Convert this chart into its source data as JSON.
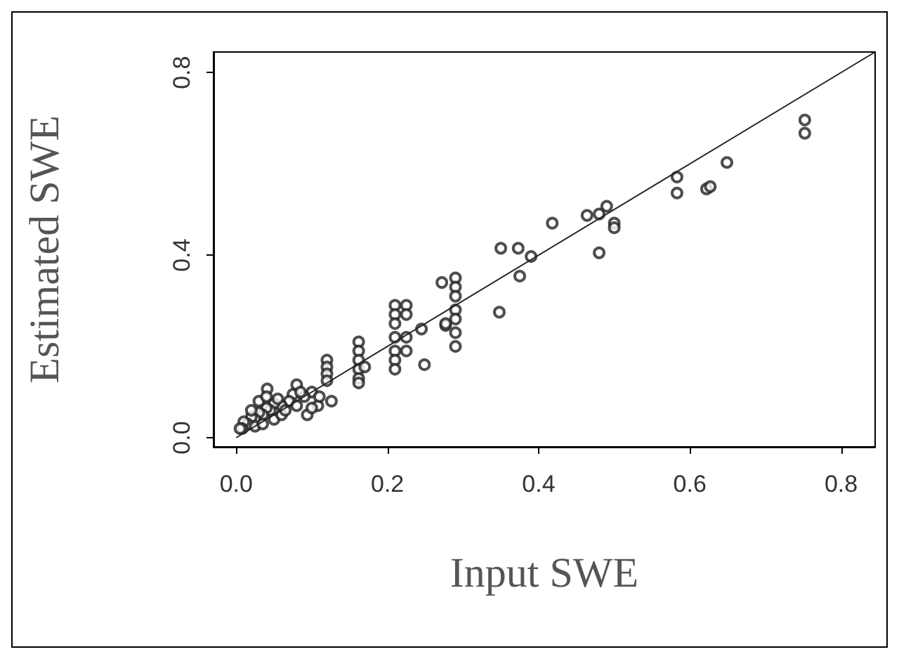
{
  "chart_data": {
    "type": "scatter",
    "xlabel": "Input SWE",
    "ylabel": "Estimated SWE",
    "xlim": [
      -0.03,
      0.845
    ],
    "ylim": [
      -0.02,
      0.845
    ],
    "xticks": [
      {
        "value": 0,
        "label": "0.0"
      },
      0.2,
      0.4,
      0.6,
      0.8
    ],
    "yticks": [
      {
        "value": 0,
        "label": "0.0"
      },
      0.4,
      0.8
    ],
    "grid": false,
    "marker": "circle",
    "series": [
      {
        "color": "#222222",
        "x": [
          0.752,
          0.752,
          0.649,
          0.622,
          0.627,
          0.583,
          0.583,
          0.49,
          0.48,
          0.5,
          0.5,
          0.48,
          0.464,
          0.418,
          0.373,
          0.35,
          0.39,
          0.375,
          0.348,
          0.29,
          0.29,
          0.29,
          0.29,
          0.29,
          0.29,
          0.29,
          0.272,
          0.277,
          0.21,
          0.21,
          0.21,
          0.21,
          0.21,
          0.21,
          0.21,
          0.225,
          0.225,
          0.225,
          0.225,
          0.245,
          0.249,
          0.277,
          0.162,
          0.162,
          0.162,
          0.162,
          0.162,
          0.162,
          0.17,
          0.12,
          0.12,
          0.12,
          0.12,
          0.126,
          0.108,
          0.08,
          0.094,
          0.041,
          0.1,
          0.09,
          0.075,
          0.07,
          0.06,
          0.05,
          0.045,
          0.04,
          0.035,
          0.03,
          0.025,
          0.02,
          0.015,
          0.01,
          0.008,
          0.005,
          0.03,
          0.04,
          0.05,
          0.06,
          0.02,
          0.025,
          0.035,
          0.055,
          0.065,
          0.08,
          0.085,
          0.1,
          0.11
        ],
        "values": [
          0.696,
          0.667,
          0.603,
          0.545,
          0.55,
          0.571,
          0.536,
          0.507,
          0.49,
          0.47,
          0.46,
          0.405,
          0.487,
          0.47,
          0.415,
          0.415,
          0.397,
          0.354,
          0.275,
          0.35,
          0.33,
          0.31,
          0.28,
          0.26,
          0.23,
          0.2,
          0.34,
          0.246,
          0.29,
          0.27,
          0.25,
          0.22,
          0.19,
          0.17,
          0.15,
          0.29,
          0.27,
          0.22,
          0.19,
          0.238,
          0.16,
          0.25,
          0.21,
          0.19,
          0.17,
          0.15,
          0.13,
          0.12,
          0.155,
          0.17,
          0.155,
          0.14,
          0.125,
          0.08,
          0.07,
          0.116,
          0.05,
          0.107,
          0.1,
          0.09,
          0.095,
          0.08,
          0.07,
          0.075,
          0.06,
          0.065,
          0.05,
          0.055,
          0.04,
          0.045,
          0.03,
          0.035,
          0.02,
          0.02,
          0.08,
          0.09,
          0.04,
          0.05,
          0.06,
          0.025,
          0.03,
          0.085,
          0.06,
          0.07,
          0.1,
          0.065,
          0.09
        ]
      },
      {
        "type": "line",
        "color": "#222222",
        "x": [
          0,
          0.845
        ],
        "values": [
          0,
          0.845
        ],
        "marker": "none",
        "line_style": "solid"
      }
    ]
  }
}
